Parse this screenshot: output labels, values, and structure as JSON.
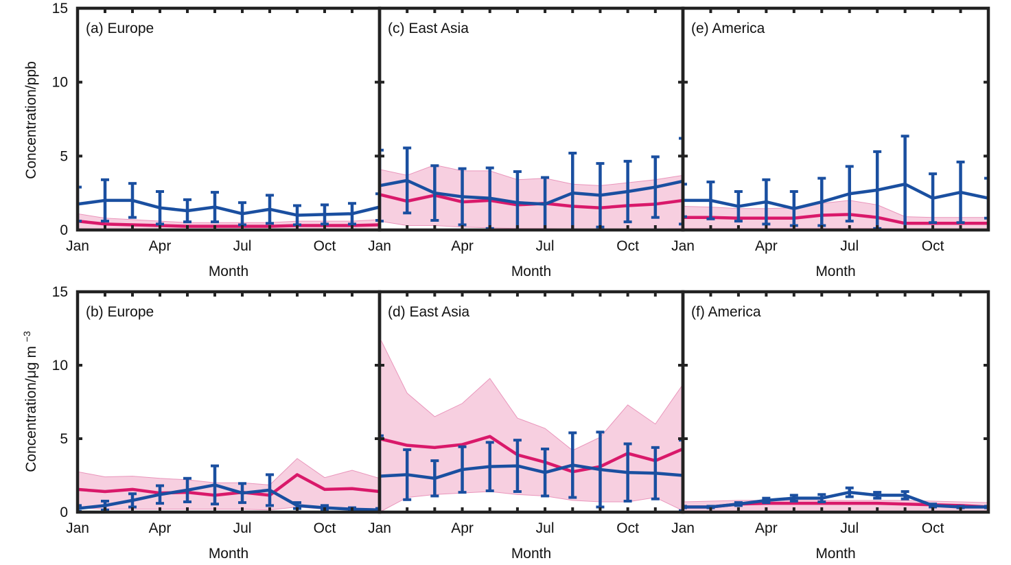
{
  "chart_data": {
    "type": "line",
    "ylim": [
      0,
      15
    ],
    "yticks": [
      0,
      5,
      10,
      15
    ],
    "xlim": [
      1,
      12
    ],
    "xticks": [
      {
        "x": 1,
        "label": "Jan"
      },
      {
        "x": 4,
        "label": "Apr"
      },
      {
        "x": 7,
        "label": "Jul"
      },
      {
        "x": 10,
        "label": "Oct"
      }
    ],
    "xlabel": "Month",
    "ylabel_top": "Concentration/ppb",
    "ylabel_bottom_main": "Concentration/μg m",
    "ylabel_bottom_sup": "−3",
    "grid": false,
    "legend": "none",
    "colors": {
      "pink_line": "#d9196a",
      "pink_band": "#f7cfe0",
      "pink_band_edge": "#e995bb",
      "blue_line": "#1a4fa0",
      "frame": "#222222"
    },
    "panels": [
      {
        "tag": "(a)",
        "region": "Europe",
        "row": 0,
        "col": 0,
        "x": [
          1,
          2,
          3,
          4,
          5,
          6,
          7,
          8,
          9,
          10,
          11,
          12
        ],
        "pink_mean": [
          0.6,
          0.4,
          0.35,
          0.3,
          0.25,
          0.25,
          0.25,
          0.25,
          0.3,
          0.3,
          0.3,
          0.35
        ],
        "pink_lower": [
          0.1,
          0.05,
          0.05,
          0.05,
          0.05,
          0.05,
          0.05,
          0.05,
          0.05,
          0.05,
          0.05,
          0.05
        ],
        "pink_upper": [
          1.1,
          0.8,
          0.7,
          0.6,
          0.5,
          0.5,
          0.5,
          0.5,
          0.6,
          0.6,
          0.6,
          0.7
        ],
        "blue_mean": [
          1.75,
          2.0,
          2.0,
          1.5,
          1.3,
          1.55,
          1.1,
          1.4,
          1.0,
          1.05,
          1.1,
          1.55
        ],
        "blue_err": [
          1.15,
          1.4,
          1.15,
          1.1,
          0.75,
          1.0,
          0.75,
          0.95,
          0.65,
          0.65,
          0.7,
          0.9
        ]
      },
      {
        "tag": "(c)",
        "region": "East Asia",
        "row": 0,
        "col": 1,
        "x": [
          1,
          2,
          3,
          4,
          5,
          6,
          7,
          8,
          9,
          10,
          11,
          12
        ],
        "pink_mean": [
          2.4,
          1.95,
          2.35,
          1.9,
          2.0,
          1.7,
          1.8,
          1.6,
          1.5,
          1.65,
          1.75,
          2.0
        ],
        "pink_lower": [
          0.6,
          0.3,
          0.3,
          0.2,
          0.15,
          0.1,
          0.1,
          0.05,
          0.05,
          0.05,
          0.05,
          0.1
        ],
        "pink_upper": [
          4.1,
          3.7,
          4.4,
          4.0,
          4.0,
          3.4,
          3.5,
          3.1,
          3.0,
          3.2,
          3.4,
          3.7
        ],
        "blue_mean": [
          3.0,
          3.35,
          2.5,
          2.25,
          2.15,
          1.85,
          1.75,
          2.5,
          2.35,
          2.6,
          2.9,
          3.3
        ],
        "blue_err": [
          2.4,
          2.2,
          1.85,
          1.9,
          2.05,
          2.1,
          1.8,
          2.7,
          2.15,
          2.05,
          2.05,
          2.9
        ]
      },
      {
        "tag": "(e)",
        "region": "America",
        "row": 0,
        "col": 2,
        "x": [
          1,
          2,
          3,
          4,
          5,
          6,
          7,
          8,
          9,
          10,
          11,
          12
        ],
        "pink_mean": [
          0.85,
          0.85,
          0.8,
          0.8,
          0.8,
          1.0,
          1.05,
          0.85,
          0.45,
          0.45,
          0.45,
          0.45
        ],
        "pink_lower": [
          0.1,
          0.1,
          0.1,
          0.1,
          0.1,
          0.1,
          0.1,
          0.1,
          0.05,
          0.05,
          0.05,
          0.05
        ],
        "pink_upper": [
          1.6,
          1.55,
          1.45,
          1.45,
          1.5,
          1.8,
          2.0,
          1.7,
          0.9,
          0.85,
          0.85,
          0.85
        ],
        "blue_mean": [
          2.0,
          2.0,
          1.6,
          1.9,
          1.45,
          1.9,
          2.45,
          2.7,
          3.1,
          2.15,
          2.55,
          2.15
        ],
        "blue_err": [
          1.1,
          1.25,
          1.0,
          1.5,
          1.15,
          1.6,
          1.85,
          2.6,
          3.25,
          1.65,
          2.05,
          1.35
        ]
      },
      {
        "tag": "(b)",
        "region": "Europe",
        "row": 1,
        "col": 0,
        "x": [
          1,
          2,
          3,
          4,
          5,
          6,
          7,
          8,
          9,
          10,
          11,
          12
        ],
        "pink_mean": [
          1.55,
          1.4,
          1.55,
          1.3,
          1.35,
          1.15,
          1.35,
          1.15,
          2.55,
          1.55,
          1.6,
          1.4
        ],
        "pink_lower": [
          0.3,
          0.2,
          0.2,
          0.2,
          0.2,
          0.2,
          0.2,
          0.15,
          0.35,
          0.2,
          0.2,
          0.2
        ],
        "pink_upper": [
          2.75,
          2.4,
          2.45,
          2.3,
          2.2,
          2.0,
          2.0,
          1.85,
          3.65,
          2.35,
          2.85,
          2.3
        ],
        "blue_mean": [
          0.25,
          0.45,
          0.8,
          1.2,
          1.5,
          1.85,
          1.3,
          1.5,
          0.45,
          0.3,
          0.2,
          0.15
        ],
        "blue_err": [
          0.2,
          0.3,
          0.45,
          0.6,
          0.8,
          1.3,
          0.65,
          1.05,
          0.2,
          0.15,
          0.1,
          0.1
        ]
      },
      {
        "tag": "(d)",
        "region": "East Asia",
        "row": 1,
        "col": 1,
        "x": [
          1,
          2,
          3,
          4,
          5,
          6,
          7,
          8,
          9,
          10,
          11,
          12
        ],
        "pink_mean": [
          5.0,
          4.55,
          4.4,
          4.6,
          5.15,
          3.9,
          3.4,
          2.75,
          3.1,
          4.0,
          3.5,
          4.3
        ],
        "pink_lower": [
          0.0,
          1.0,
          1.2,
          1.3,
          1.4,
          1.2,
          1.1,
          0.8,
          0.7,
          0.7,
          1.0,
          0.1
        ],
        "pink_upper": [
          11.9,
          8.1,
          6.5,
          7.4,
          9.1,
          6.4,
          5.7,
          4.2,
          5.1,
          7.3,
          6.0,
          8.7
        ],
        "blue_mean": [
          2.45,
          2.55,
          2.3,
          2.9,
          3.1,
          3.15,
          2.7,
          3.2,
          2.9,
          2.7,
          2.65,
          2.5
        ],
        "blue_err": [
          2.75,
          1.7,
          1.2,
          1.55,
          1.65,
          1.75,
          1.6,
          2.2,
          2.55,
          1.95,
          1.75,
          2.4
        ]
      },
      {
        "tag": "(f)",
        "region": "America",
        "row": 1,
        "col": 2,
        "x": [
          1,
          2,
          3,
          4,
          5,
          6,
          7,
          8,
          9,
          10,
          11,
          12
        ],
        "pink_mean": [
          0.35,
          0.35,
          0.55,
          0.6,
          0.6,
          0.6,
          0.6,
          0.6,
          0.55,
          0.5,
          0.45,
          0.35
        ],
        "pink_lower": [
          0.05,
          0.05,
          0.05,
          0.05,
          0.05,
          0.05,
          0.05,
          0.05,
          0.05,
          0.05,
          0.05,
          0.05
        ],
        "pink_upper": [
          0.7,
          0.75,
          0.8,
          0.8,
          0.8,
          0.8,
          0.8,
          0.8,
          0.8,
          0.75,
          0.7,
          0.65
        ],
        "blue_mean": [
          0.35,
          0.35,
          0.55,
          0.8,
          0.95,
          0.95,
          1.35,
          1.15,
          1.15,
          0.45,
          0.35,
          0.35
        ],
        "blue_err": [
          0.05,
          0.05,
          0.1,
          0.15,
          0.2,
          0.25,
          0.3,
          0.2,
          0.25,
          0.1,
          0.05,
          0.05
        ]
      }
    ]
  }
}
